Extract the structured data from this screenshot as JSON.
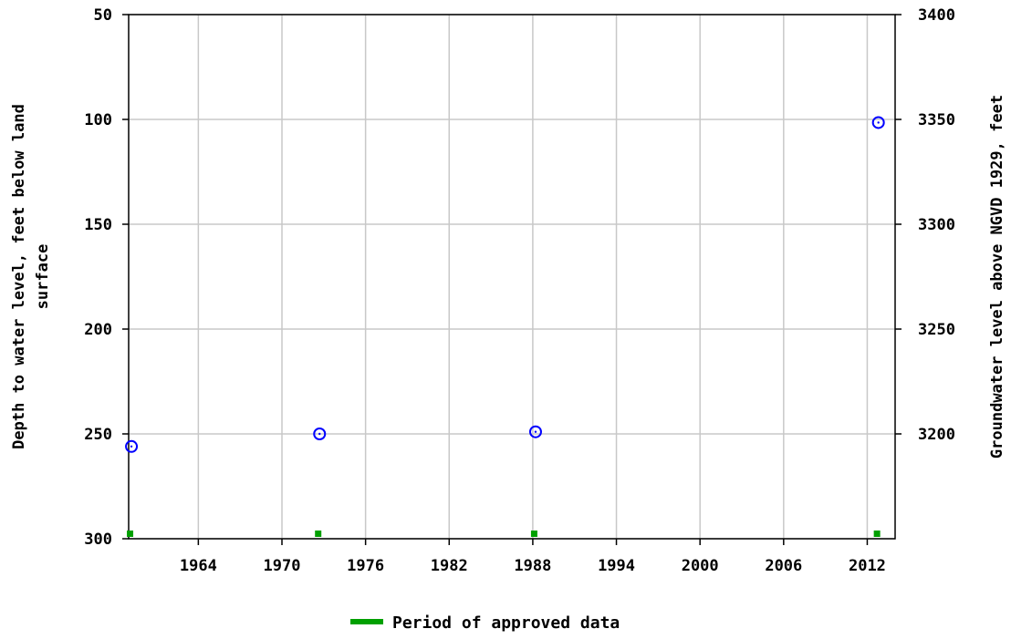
{
  "chart_data": {
    "type": "scatter",
    "title": "",
    "ylabel_left": [
      "Depth to water level, feet below land",
      "surface"
    ],
    "ylabel_right": "Groundwater level above NGVD 1929, feet",
    "xlabel": "",
    "xlim": [
      1959,
      2014
    ],
    "ylim_left": [
      50,
      300
    ],
    "ylim_left_inverted": true,
    "ylim_right": [
      3400,
      3150
    ],
    "x_ticks": [
      1964,
      1970,
      1976,
      1982,
      1988,
      1994,
      2000,
      2006,
      2012
    ],
    "y_left_ticks": [
      50,
      100,
      150,
      200,
      250,
      300
    ],
    "y_right_ticks": [
      3400,
      3350,
      3300,
      3250,
      3200
    ],
    "grid": true,
    "series": [
      {
        "marker": "circle-open",
        "color": "#0000ff",
        "points": [
          {
            "x": 1959.2,
            "y": 256
          },
          {
            "x": 1972.7,
            "y": 250
          },
          {
            "x": 1988.2,
            "y": 249
          },
          {
            "x": 2012.8,
            "y": 101.5
          }
        ]
      }
    ],
    "approved_periods": [
      {
        "x": 1959.1
      },
      {
        "x": 1972.6
      },
      {
        "x": 1988.1
      },
      {
        "x": 2012.7
      }
    ],
    "approved_color": "#00a000",
    "legend": {
      "label": "Period of approved data",
      "placement": "bottom-center",
      "color": "#00a000"
    }
  }
}
